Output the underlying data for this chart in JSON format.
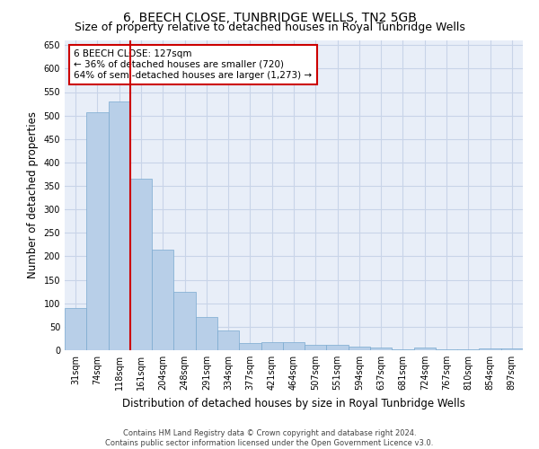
{
  "title": "6, BEECH CLOSE, TUNBRIDGE WELLS, TN2 5GB",
  "subtitle": "Size of property relative to detached houses in Royal Tunbridge Wells",
  "xlabel": "Distribution of detached houses by size in Royal Tunbridge Wells",
  "ylabel": "Number of detached properties",
  "categories": [
    "31sqm",
    "74sqm",
    "118sqm",
    "161sqm",
    "204sqm",
    "248sqm",
    "291sqm",
    "334sqm",
    "377sqm",
    "421sqm",
    "464sqm",
    "507sqm",
    "551sqm",
    "594sqm",
    "637sqm",
    "681sqm",
    "724sqm",
    "767sqm",
    "810sqm",
    "854sqm",
    "897sqm"
  ],
  "values": [
    90,
    507,
    530,
    365,
    215,
    125,
    70,
    43,
    15,
    18,
    18,
    11,
    11,
    8,
    5,
    1,
    5,
    1,
    1,
    4,
    4
  ],
  "bar_color": "#b8cfe8",
  "bar_edgecolor": "#7aaad0",
  "bar_linewidth": 0.5,
  "vline_color": "#cc0000",
  "vline_linewidth": 1.5,
  "annotation_text": "6 BEECH CLOSE: 127sqm\n← 36% of detached houses are smaller (720)\n64% of semi-detached houses are larger (1,273) →",
  "annotation_box_color": "#cc0000",
  "annotation_text_fontsize": 7.5,
  "ylim": [
    0,
    660
  ],
  "yticks": [
    0,
    50,
    100,
    150,
    200,
    250,
    300,
    350,
    400,
    450,
    500,
    550,
    600,
    650
  ],
  "grid_color": "#c8d4e8",
  "background_color": "#e8eef8",
  "footer": "Contains HM Land Registry data © Crown copyright and database right 2024.\nContains public sector information licensed under the Open Government Licence v3.0.",
  "title_fontsize": 10,
  "subtitle_fontsize": 9,
  "xlabel_fontsize": 8.5,
  "ylabel_fontsize": 8.5,
  "tick_fontsize": 7
}
